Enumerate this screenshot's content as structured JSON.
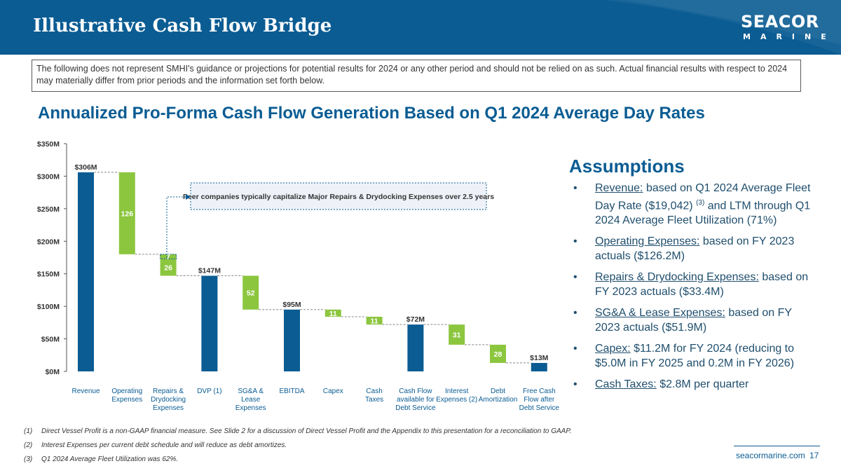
{
  "header": {
    "title": "Illustrative Cash Flow Bridge",
    "logo_main": "SEACOR",
    "logo_sub": "MARINE"
  },
  "disclaimer": "The following does not represent SMHI's guidance or projections for potential results for 2024 or any other period and should not be relied on as such. Actual financial results with respect to 2024 may materially differ from prior periods and the information set forth below.",
  "subtitle": "Annualized Pro-Forma Cash Flow Generation Based on Q1 2024 Average Day Rates",
  "colors": {
    "brand_blue": "#0a5c93",
    "accent_green": "#8cc63f",
    "text_dark": "#333333"
  },
  "chart_data": {
    "type": "bar",
    "subtype": "waterfall",
    "y_tick_labels": [
      "$0M",
      "$50M",
      "$100M",
      "$150M",
      "$200M",
      "$250M",
      "$300M",
      "$350M"
    ],
    "y_ticks": [
      0,
      50,
      100,
      150,
      200,
      250,
      300,
      350
    ],
    "ylim": [
      0,
      350
    ],
    "categories": [
      [
        "Revenue"
      ],
      [
        "Operating",
        "Expenses"
      ],
      [
        "Repairs &",
        "Drydocking",
        "Expenses"
      ],
      [
        "DVP (1)"
      ],
      [
        "SG&A &",
        "Lease",
        "Expenses"
      ],
      [
        "EBITDA"
      ],
      [
        "Capex"
      ],
      [
        "Cash",
        "Taxes"
      ],
      [
        "Cash Flow",
        "available for",
        "Debt Service"
      ],
      [
        "Interest",
        "Expenses (2)"
      ],
      [
        "Debt",
        "Amortization"
      ],
      [
        "Free Cash",
        "Flow after",
        "Debt Service"
      ]
    ],
    "bars": [
      {
        "kind": "total",
        "bottom": 0,
        "top": 306,
        "label": "$306M"
      },
      {
        "kind": "step",
        "bottom": 180,
        "top": 306,
        "label": "126"
      },
      {
        "kind": "step",
        "bottom": 147,
        "top": 173,
        "label": "26",
        "extra": {
          "bottom": 173,
          "top": 180,
          "label": "7"
        }
      },
      {
        "kind": "total",
        "bottom": 0,
        "top": 147,
        "label": "$147M"
      },
      {
        "kind": "step",
        "bottom": 95,
        "top": 147,
        "label": "52"
      },
      {
        "kind": "total",
        "bottom": 0,
        "top": 95,
        "label": "$95M"
      },
      {
        "kind": "step",
        "bottom": 84,
        "top": 95,
        "label": "11"
      },
      {
        "kind": "step",
        "bottom": 72,
        "top": 84,
        "label": "11"
      },
      {
        "kind": "total",
        "bottom": 0,
        "top": 72,
        "label": "$72M"
      },
      {
        "kind": "step",
        "bottom": 41,
        "top": 72,
        "label": "31"
      },
      {
        "kind": "step",
        "bottom": 13,
        "top": 41,
        "label": "28"
      },
      {
        "kind": "total",
        "bottom": 0,
        "top": 13,
        "label": "$13M"
      }
    ],
    "annotation": "Peer companies typically capitalize Major Repairs & Drydocking Expenses over 2.5 years"
  },
  "assumptions": {
    "title": "Assumptions",
    "bullet": "•",
    "items": [
      {
        "term": "Revenue:",
        "pre": " based on Q1 2024 Average Fleet Day Rate ($19,042) ",
        "sup": "(3)",
        "post": " and LTM through Q1 2024 Average Fleet Utilization (71%)"
      },
      {
        "term": "Operating Expenses:",
        "pre": " based on FY 2023 actuals ($126.2M)",
        "sup": "",
        "post": ""
      },
      {
        "term": "Repairs & Drydocking Expenses:",
        "pre": " based on FY 2023 actuals ($33.4M)",
        "sup": "",
        "post": ""
      },
      {
        "term": "SG&A & Lease Expenses:",
        "pre": " based on FY 2023 actuals ($51.9M)",
        "sup": "",
        "post": ""
      },
      {
        "term": "Capex:",
        "pre": " $11.2M for FY 2024 (reducing to $5.0M in FY 2025 and 0.2M in FY 2026)",
        "sup": "",
        "post": ""
      },
      {
        "term": "Cash Taxes:",
        "pre": " $2.8M per quarter",
        "sup": "",
        "post": ""
      }
    ]
  },
  "footnotes": [
    {
      "num": "(1)",
      "text": "Direct Vessel Profit is a non-GAAP financial measure. See Slide 2 for a discussion of Direct Vessel Profit and the Appendix to this presentation for a reconciliation to GAAP."
    },
    {
      "num": "(2)",
      "text": "Interest Expenses per current debt schedule and will reduce as debt amortizes."
    },
    {
      "num": "(3)",
      "text": "Q1 2024 Average Fleet Utilization was 62%."
    }
  ],
  "footer": {
    "url": "seacormarine.com",
    "page": "17"
  }
}
